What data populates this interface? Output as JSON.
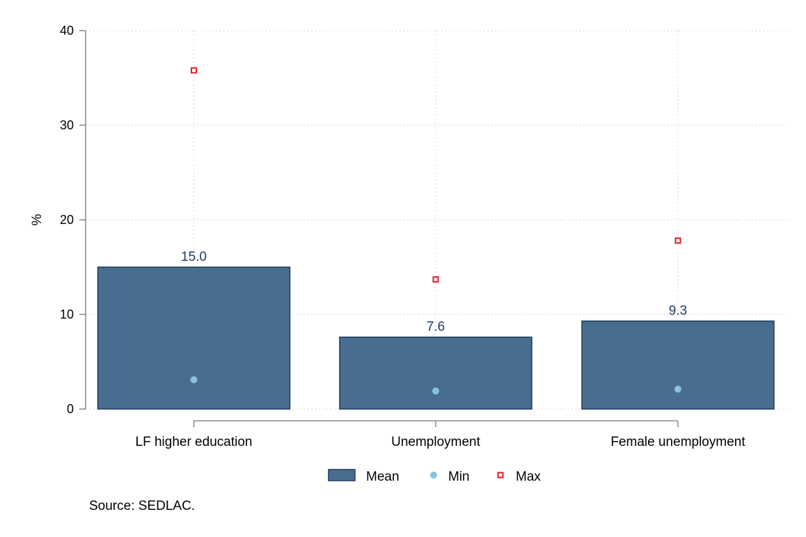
{
  "chart_data": {
    "type": "bar",
    "categories": [
      "LF higher education",
      "Unemployment",
      "Female unemployment"
    ],
    "series": [
      {
        "name": "Mean",
        "kind": "bar",
        "values": [
          15.0,
          7.6,
          9.3
        ],
        "color": "#486d8e",
        "labels": [
          "15.0",
          "7.6",
          "9.3"
        ]
      },
      {
        "name": "Min",
        "kind": "scatter-circle",
        "values": [
          3.1,
          1.9,
          2.1
        ],
        "color": "#89c1e3"
      },
      {
        "name": "Max",
        "kind": "scatter-square",
        "values": [
          35.8,
          13.7,
          17.8
        ],
        "color": "#e41a1c"
      }
    ],
    "ylabel": "%",
    "ylim": [
      0,
      40
    ],
    "yticks": [
      0,
      10,
      20,
      30,
      40
    ],
    "grid": true,
    "legend_position": "bottom-center",
    "colors": {
      "bar_fill": "#486d8e",
      "bar_stroke": "#1e3a5f",
      "label": "#1e3a5f",
      "grid": "#c8c8c8"
    }
  },
  "source_note": "Source: SEDLAC."
}
